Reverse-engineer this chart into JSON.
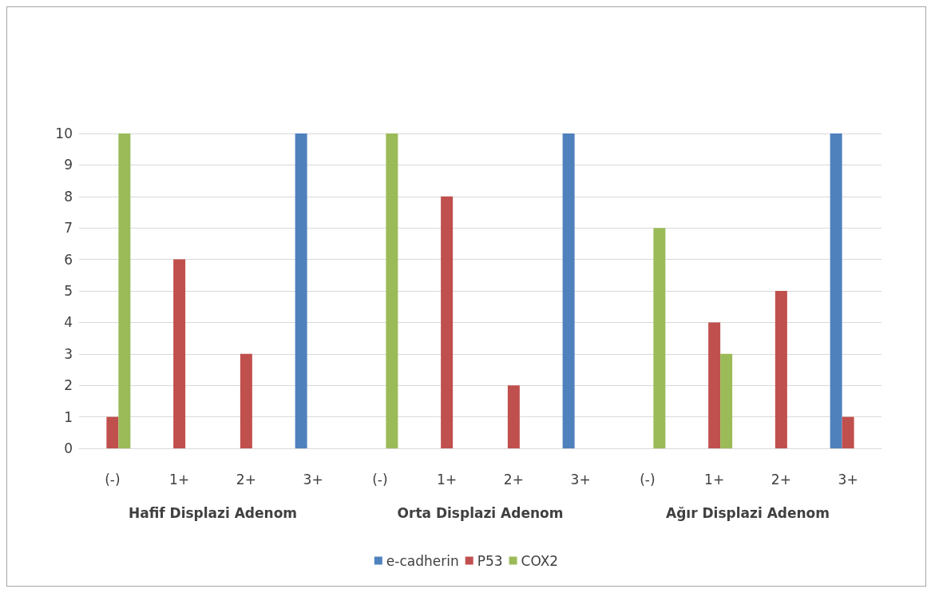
{
  "chart_data": {
    "type": "bar",
    "categories": [
      "(-)",
      "1+",
      "2+",
      "3+",
      "(-)",
      "1+",
      "2+",
      "3+",
      "(-)",
      "1+",
      "2+",
      "3+"
    ],
    "series": [
      {
        "name": "e-cadherin",
        "color": "#4f81bd",
        "values": [
          0,
          0,
          0,
          10,
          0,
          0,
          0,
          10,
          0,
          0,
          0,
          10
        ]
      },
      {
        "name": "P53",
        "color": "#c0504d",
        "values": [
          1,
          6,
          3,
          0,
          0,
          8,
          2,
          0,
          0,
          4,
          5,
          1
        ]
      },
      {
        "name": "COX2",
        "color": "#9bbb59",
        "values": [
          10,
          0,
          0,
          0,
          10,
          0,
          0,
          0,
          7,
          3,
          0,
          0
        ]
      }
    ],
    "annotations": [
      "Hafif Displazi Adenom",
      "Orta Displazi Adenom",
      "Ağır Displazi Adenom"
    ],
    "ylim": [
      0,
      10
    ],
    "yticks": [
      0,
      1,
      2,
      3,
      4,
      5,
      6,
      7,
      8,
      9,
      10
    ],
    "grid": "y",
    "legend": "bottom"
  }
}
